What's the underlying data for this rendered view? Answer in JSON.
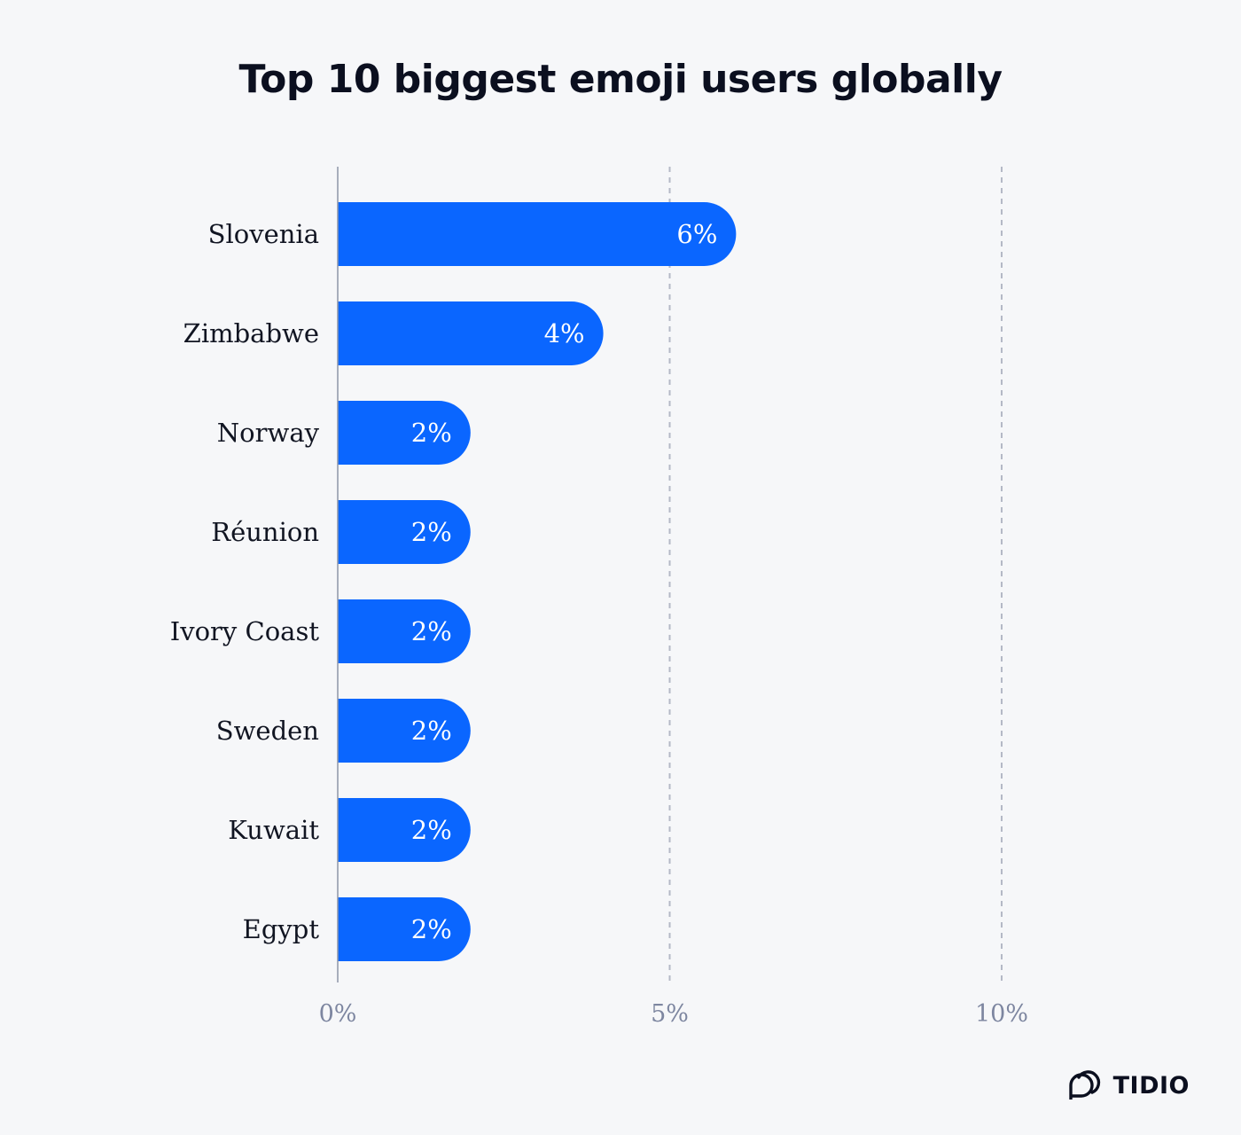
{
  "chart_data": {
    "type": "bar",
    "orientation": "horizontal",
    "title": "Top 10 biggest emoji users globally",
    "categories": [
      "Slovenia",
      "Zimbabwe",
      "Norway",
      "Réunion",
      "Ivory Coast",
      "Sweden",
      "Kuwait",
      "Egypt"
    ],
    "values": [
      6,
      4,
      2,
      2,
      2,
      2,
      2,
      2
    ],
    "value_labels": [
      "6%",
      "4%",
      "2%",
      "2%",
      "2%",
      "2%",
      "2%",
      "2%"
    ],
    "xlim": [
      0,
      10
    ],
    "xticks": [
      0,
      5,
      10
    ],
    "xtick_labels": [
      "0%",
      "5%",
      "10%"
    ],
    "xlabel": "",
    "ylabel": "",
    "grid": "vertical dashed",
    "bar_color": "#0a66ff"
  },
  "brand": {
    "name": "TIDIO",
    "logo_icon": "tidio-logo-icon"
  }
}
